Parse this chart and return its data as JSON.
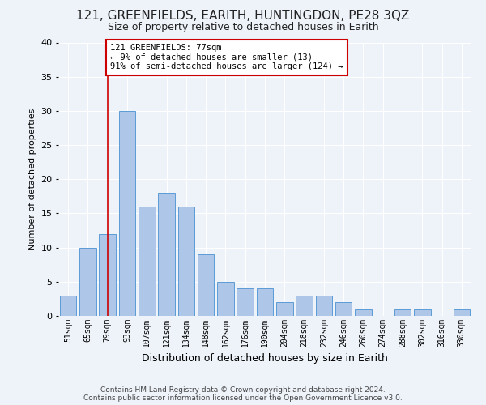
{
  "title": "121, GREENFIELDS, EARITH, HUNTINGDON, PE28 3QZ",
  "subtitle": "Size of property relative to detached houses in Earith",
  "xlabel": "Distribution of detached houses by size in Earith",
  "ylabel": "Number of detached properties",
  "footer_line1": "Contains HM Land Registry data © Crown copyright and database right 2024.",
  "footer_line2": "Contains public sector information licensed under the Open Government Licence v3.0.",
  "categories": [
    "51sqm",
    "65sqm",
    "79sqm",
    "93sqm",
    "107sqm",
    "121sqm",
    "134sqm",
    "148sqm",
    "162sqm",
    "176sqm",
    "190sqm",
    "204sqm",
    "218sqm",
    "232sqm",
    "246sqm",
    "260sqm",
    "274sqm",
    "288sqm",
    "302sqm",
    "316sqm",
    "330sqm"
  ],
  "values": [
    3,
    10,
    12,
    30,
    16,
    18,
    16,
    9,
    5,
    4,
    4,
    2,
    3,
    3,
    2,
    1,
    0,
    1,
    1,
    0,
    1
  ],
  "bar_color": "#aec6e8",
  "bar_edge_color": "#5b9bd5",
  "background_color": "#eef3fa",
  "grid_color": "#ffffff",
  "annotation_box_color": "#ffffff",
  "annotation_border_color": "#cc0000",
  "vline_color": "#cc0000",
  "vline_x_idx": 2,
  "annotation_text_line1": "121 GREENFIELDS: 77sqm",
  "annotation_text_line2": "← 9% of detached houses are smaller (13)",
  "annotation_text_line3": "91% of semi-detached houses are larger (124) →",
  "ylim": [
    0,
    40
  ],
  "yticks": [
    0,
    5,
    10,
    15,
    20,
    25,
    30,
    35,
    40
  ]
}
